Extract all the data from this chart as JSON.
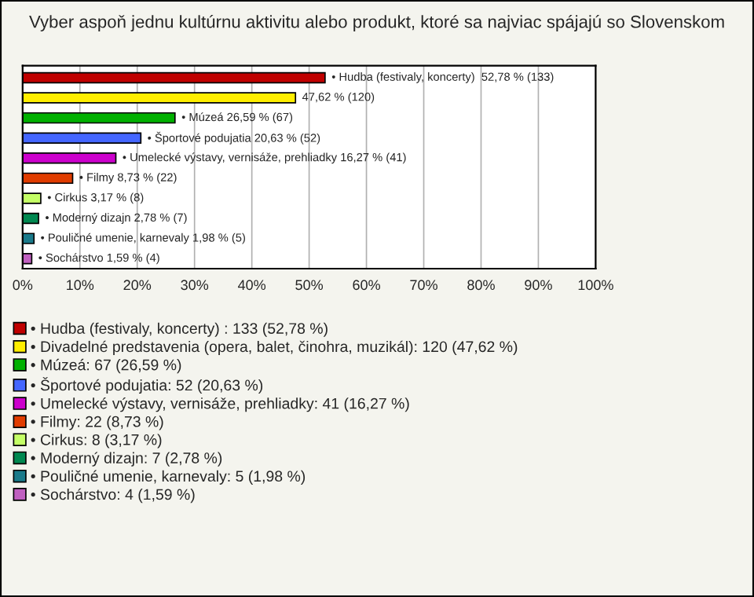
{
  "chart_data": {
    "type": "bar",
    "orientation": "horizontal",
    "title": "Vyber aspoň jednu kultúrnu aktivitu alebo produkt, ktoré sa najviac spájajú so Slovenskom",
    "categories": [
      null,
      null,
      null,
      null,
      null,
      null,
      null,
      null,
      null,
      null
    ],
    "series": [
      {
        "name": "• Hudba (festivaly, koncerty) : 133 (52,78 %)",
        "color": "#c00000",
        "values": [
          52.78,
          null,
          null,
          null,
          null,
          null,
          null,
          null,
          null,
          null
        ],
        "value_labels": [
          "• Hudba (festivaly, koncerty)  52,78 % (133)",
          null,
          null,
          null,
          null,
          null,
          null,
          null,
          null,
          null
        ]
      },
      {
        "name": "• Divadelné predstavenia (opera, balet, činohra, muzikál): 120 (47,62 %)",
        "color": "#ffee00",
        "values": [
          null,
          47.62,
          null,
          null,
          null,
          null,
          null,
          null,
          null,
          null
        ],
        "value_labels": [
          null,
          "47,62 % (120)",
          null,
          null,
          null,
          null,
          null,
          null,
          null,
          null
        ]
      },
      {
        "name": "• Múzeá: 67 (26,59 %)",
        "color": "#00b000",
        "values": [
          null,
          null,
          26.59,
          null,
          null,
          null,
          null,
          null,
          null,
          null
        ],
        "value_labels": [
          null,
          null,
          "• Múzeá 26,59 % (67)",
          null,
          null,
          null,
          null,
          null,
          null,
          null
        ]
      },
      {
        "name": "• Športové podujatia: 52 (20,63 %)",
        "color": "#4466ff",
        "values": [
          null,
          null,
          null,
          20.63,
          null,
          null,
          null,
          null,
          null,
          null
        ],
        "value_labels": [
          null,
          null,
          null,
          "• Športové podujatia 20,63 % (52)",
          null,
          null,
          null,
          null,
          null,
          null
        ]
      },
      {
        "name": "• Umelecké výstavy, vernisáže, prehliadky: 41 (16,27 %)",
        "color": "#cc00cc",
        "values": [
          null,
          null,
          null,
          null,
          16.27,
          null,
          null,
          null,
          null,
          null
        ],
        "value_labels": [
          null,
          null,
          null,
          null,
          "• Umelecké výstavy, vernisáže, prehliadky 16,27 % (41)",
          null,
          null,
          null,
          null,
          null
        ]
      },
      {
        "name": "• Filmy: 22 (8,73 %)",
        "color": "#e03c00",
        "values": [
          null,
          null,
          null,
          null,
          null,
          8.73,
          null,
          null,
          null,
          null
        ],
        "value_labels": [
          null,
          null,
          null,
          null,
          null,
          "• Filmy 8,73 % (22)",
          null,
          null,
          null,
          null
        ]
      },
      {
        "name": "• Cirkus: 8 (3,17 %)",
        "color": "#c4ff66",
        "values": [
          null,
          null,
          null,
          null,
          null,
          null,
          3.17,
          null,
          null,
          null
        ],
        "value_labels": [
          null,
          null,
          null,
          null,
          null,
          null,
          "• Cirkus 3,17 % (8)",
          null,
          null,
          null
        ]
      },
      {
        "name": "• Moderný dizajn: 7 (2,78 %)",
        "color": "#008850",
        "values": [
          null,
          null,
          null,
          null,
          null,
          null,
          null,
          2.78,
          null,
          null
        ],
        "value_labels": [
          null,
          null,
          null,
          null,
          null,
          null,
          null,
          "• Moderný dizajn 2,78 % (7)",
          null,
          null
        ]
      },
      {
        "name": "• Pouličné umenie, karnevaly: 5 (1,98 %)",
        "color": "#1a7a8a",
        "values": [
          null,
          null,
          null,
          null,
          null,
          null,
          null,
          null,
          1.98,
          null
        ],
        "value_labels": [
          null,
          null,
          null,
          null,
          null,
          null,
          null,
          null,
          "• Pouličné umenie, karnevaly 1,98 % (5)",
          null
        ]
      },
      {
        "name": "• Sochárstvo: 4 (1,59 %)",
        "color": "#c060c0",
        "values": [
          null,
          null,
          null,
          null,
          null,
          null,
          null,
          null,
          null,
          1.59
        ],
        "value_labels": [
          null,
          null,
          null,
          null,
          null,
          null,
          null,
          null,
          null,
          "• Sochárstvo 1,59 % (4)"
        ]
      }
    ],
    "xlim": [
      0,
      100
    ],
    "xticks": [
      {
        "value": 0,
        "label": "0%"
      },
      {
        "value": 10,
        "label": "10%"
      },
      {
        "value": 20,
        "label": "20%"
      },
      {
        "value": 30,
        "label": "30%"
      },
      {
        "value": 40,
        "label": "40%"
      },
      {
        "value": 50,
        "label": "50%"
      },
      {
        "value": 60,
        "label": "60%"
      },
      {
        "value": 70,
        "label": "70%"
      },
      {
        "value": 80,
        "label": "80%"
      },
      {
        "value": 90,
        "label": "90%"
      },
      {
        "value": 100,
        "label": "100%"
      }
    ],
    "grid": "x",
    "legend": "bottom",
    "tick_labels": "x"
  }
}
